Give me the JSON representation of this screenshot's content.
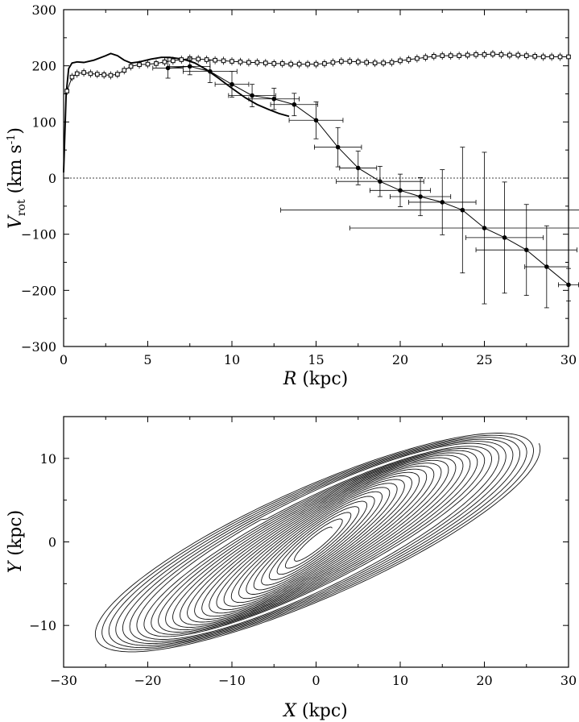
{
  "chart_data": [
    {
      "type": "line",
      "xlabel": {
        "var": "R",
        "unit": " (kpc)"
      },
      "ylabel": {
        "var": "V",
        "sub": "rot",
        "unit": " (km s",
        "sup": "-1",
        "close": ")"
      },
      "xlim": [
        0,
        30
      ],
      "ylim": [
        -300,
        300
      ],
      "xticks": [
        0,
        5,
        10,
        15,
        20,
        25,
        30
      ],
      "yticks": [
        -300,
        -200,
        -100,
        0,
        100,
        200,
        300
      ],
      "zero_line": {
        "y": 0,
        "style": "dotted"
      },
      "series": [
        {
          "style": "thick-line",
          "points": [
            [
              0,
              10
            ],
            [
              0.15,
              150
            ],
            [
              0.3,
              195
            ],
            [
              0.5,
              205
            ],
            [
              0.8,
              207
            ],
            [
              1.2,
              206
            ],
            [
              1.8,
              210
            ],
            [
              2.5,
              218
            ],
            [
              2.8,
              222
            ],
            [
              3.2,
              218
            ],
            [
              3.6,
              210
            ],
            [
              4.0,
              205
            ],
            [
              4.5,
              207
            ],
            [
              5.2,
              212
            ],
            [
              5.8,
              215
            ],
            [
              6.3,
              215
            ],
            [
              6.8,
              213
            ],
            [
              7.3,
              210
            ],
            [
              7.8,
              205
            ],
            [
              8.5,
              193
            ],
            [
              9.2,
              178
            ],
            [
              10.0,
              160
            ],
            [
              10.8,
              143
            ],
            [
              11.5,
              131
            ],
            [
              12.2,
              122
            ],
            [
              12.8,
              115
            ],
            [
              13.4,
              110
            ]
          ]
        },
        {
          "style": "line-open-squares",
          "points": [
            [
              0.2,
              155
            ],
            [
              0.5,
              180
            ],
            [
              0.8,
              186
            ],
            [
              1.2,
              188
            ],
            [
              1.6,
              186
            ],
            [
              2.0,
              185
            ],
            [
              2.4,
              184
            ],
            [
              2.8,
              183
            ],
            [
              3.2,
              185
            ],
            [
              3.6,
              192
            ],
            [
              4.0,
              199
            ],
            [
              4.5,
              202
            ],
            [
              5.0,
              203
            ],
            [
              5.5,
              204
            ],
            [
              6.0,
              207
            ],
            [
              6.5,
              209
            ],
            [
              7.0,
              211
            ],
            [
              7.5,
              213
            ],
            [
              8.0,
              212
            ],
            [
              8.5,
              211
            ],
            [
              9.0,
              210
            ],
            [
              9.5,
              209
            ],
            [
              10.0,
              208
            ],
            [
              10.5,
              207
            ],
            [
              11.0,
              206
            ],
            [
              11.5,
              206
            ],
            [
              12.0,
              205
            ],
            [
              12.5,
              204
            ],
            [
              13.0,
              204
            ],
            [
              13.5,
              203
            ],
            [
              14.0,
              203
            ],
            [
              14.5,
              203
            ],
            [
              15.0,
              203
            ],
            [
              15.5,
              204
            ],
            [
              16.0,
              206
            ],
            [
              16.5,
              208
            ],
            [
              17.0,
              208
            ],
            [
              17.5,
              207
            ],
            [
              18.0,
              206
            ],
            [
              18.5,
              205
            ],
            [
              19.0,
              205
            ],
            [
              19.5,
              206
            ],
            [
              20.0,
              209
            ],
            [
              20.5,
              211
            ],
            [
              21.0,
              213
            ],
            [
              21.5,
              215
            ],
            [
              22.0,
              217
            ],
            [
              22.5,
              218
            ],
            [
              23.0,
              218
            ],
            [
              23.5,
              218
            ],
            [
              24.0,
              219
            ],
            [
              24.5,
              220
            ],
            [
              25.0,
              220
            ],
            [
              25.5,
              221
            ],
            [
              26.0,
              220
            ],
            [
              26.5,
              219
            ],
            [
              27.0,
              219
            ],
            [
              27.5,
              218
            ],
            [
              28.0,
              217
            ],
            [
              28.5,
              216
            ],
            [
              29.0,
              216
            ],
            [
              29.5,
              216
            ],
            [
              30.0,
              216
            ]
          ]
        },
        {
          "style": "line-filled-dots-errorbars",
          "points": [
            {
              "x": 6.2,
              "y": 196,
              "xerr": 0.9,
              "yerr": 18
            },
            {
              "x": 7.5,
              "y": 199,
              "xerr": 1.2,
              "yerr": 15
            },
            {
              "x": 8.7,
              "y": 190,
              "xerr": 1.6,
              "yerr": 20
            },
            {
              "x": 10.0,
              "y": 167,
              "xerr": 1.0,
              "yerr": 23
            },
            {
              "x": 11.2,
              "y": 147,
              "xerr": 1.4,
              "yerr": 20
            },
            {
              "x": 12.5,
              "y": 141,
              "xerr": 1.5,
              "yerr": 19
            },
            {
              "x": 13.7,
              "y": 131,
              "xerr": 1.4,
              "yerr": 20
            },
            {
              "x": 15.0,
              "y": 103,
              "xerr": 1.6,
              "yerr": 33
            },
            {
              "x": 16.3,
              "y": 55,
              "xerr": 1.4,
              "yerr": 35
            },
            {
              "x": 17.5,
              "y": 18,
              "xerr": 1.1,
              "yerr": 30
            },
            {
              "x": 18.8,
              "y": -6,
              "xerr": 2.6,
              "yerr": 27
            },
            {
              "x": 20.0,
              "y": -22,
              "xerr": 1.8,
              "yerr": 29
            },
            {
              "x": 21.2,
              "y": -33,
              "xerr": 1.8,
              "yerr": 34
            },
            {
              "x": 22.5,
              "y": -43,
              "xerr": 2.0,
              "yerr": 58
            },
            {
              "x": 23.7,
              "y": -57,
              "xerr": 10.8,
              "yerr": 112
            },
            {
              "x": 25.0,
              "y": -89,
              "xerr": 8.0,
              "yerr": 135
            },
            {
              "x": 26.2,
              "y": -106,
              "xerr": 2.3,
              "yerr": 99
            },
            {
              "x": 27.5,
              "y": -128,
              "xerr": 3.0,
              "yerr": 81
            },
            {
              "x": 28.7,
              "y": -158,
              "xerr": 1.3,
              "yerr": 73
            },
            {
              "x": 30.0,
              "y": -190,
              "xerr": 0.6,
              "yerr": 29
            }
          ]
        }
      ]
    },
    {
      "type": "line",
      "description_kind": "orbit",
      "xlabel": {
        "var": "X",
        "unit": " (kpc)"
      },
      "ylabel": {
        "var": "Y",
        "unit": " (kpc)"
      },
      "xlim": [
        -30,
        30
      ],
      "ylim": [
        -15,
        15
      ],
      "xticks": [
        -30,
        -20,
        -10,
        0,
        10,
        20,
        30
      ],
      "yticks": [
        -10,
        0,
        10
      ],
      "orbit": {
        "loop_count": 28,
        "semi_major_axis_range_kpc": [
          2.5,
          29
        ],
        "loop_axis_ratio": 0.22,
        "min_major_axis_angle_deg": 24,
        "max_major_axis_angle_deg": 41,
        "outer_loops_overshoot_frac": 0.08
      }
    }
  ]
}
